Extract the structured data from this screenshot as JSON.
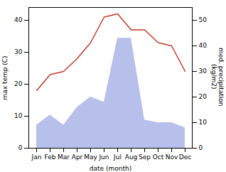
{
  "chart_data": {
    "type": "line",
    "xlabel": "date (month)",
    "ylabel": "max temp (C)",
    "y2label": "med. precipitation\n(kg/m2)",
    "categories": [
      "Jan",
      "Feb",
      "Mar",
      "Apr",
      "May",
      "Jun",
      "Jul",
      "Aug",
      "Sep",
      "Oct",
      "Nov",
      "Dec"
    ],
    "series": [
      {
        "type": "area",
        "axis": "y2",
        "color": "#aab4e8",
        "values": [
          9,
          13,
          9,
          16,
          20,
          18,
          43,
          43,
          11,
          10,
          10,
          8
        ]
      },
      {
        "type": "line",
        "color": "#c0392b",
        "values": [
          18,
          23,
          24,
          28,
          33,
          41,
          42,
          37,
          37,
          33,
          32,
          24
        ]
      }
    ],
    "ylim": [
      0,
      44
    ],
    "yticks": [
      0,
      10,
      20,
      30,
      40
    ],
    "y2lim": [
      0,
      55
    ],
    "y2ticks": [
      0,
      10,
      20,
      30,
      40,
      50
    ]
  }
}
